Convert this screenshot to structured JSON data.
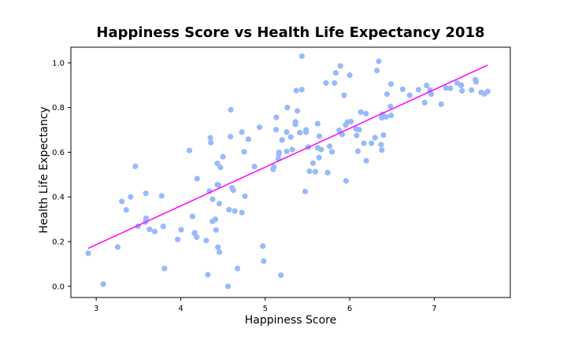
{
  "chart_data": {
    "type": "scatter",
    "title": "Happiness Score vs Health Life Expectancy 2018",
    "xlabel": "Happiness Score",
    "ylabel": "Health Life Expectancy",
    "xlim": [
      2.7,
      7.9
    ],
    "ylim": [
      -0.05,
      1.07
    ],
    "xticks": [
      3,
      4,
      5,
      6,
      7
    ],
    "yticks": [
      0.0,
      0.2,
      0.4,
      0.6,
      0.8,
      1.0
    ],
    "grid": false,
    "point_color": "#98bafb",
    "line_color": "#ff00ff",
    "regression_line": {
      "x": [
        2.905,
        7.632
      ],
      "y": [
        0.17,
        0.99
      ]
    },
    "points": [
      [
        2.905,
        0.148
      ],
      [
        3.083,
        0.01
      ],
      [
        3.254,
        0.176
      ],
      [
        3.303,
        0.38
      ],
      [
        3.355,
        0.342
      ],
      [
        3.408,
        0.4
      ],
      [
        3.462,
        0.537
      ],
      [
        3.495,
        0.269
      ],
      [
        3.582,
        0.288
      ],
      [
        3.59,
        0.305
      ],
      [
        3.587,
        0.416
      ],
      [
        3.631,
        0.255
      ],
      [
        3.692,
        0.245
      ],
      [
        3.774,
        0.405
      ],
      [
        3.793,
        0.268
      ],
      [
        3.808,
        0.08
      ],
      [
        3.964,
        0.21
      ],
      [
        4.005,
        0.253
      ],
      [
        4.103,
        0.608
      ],
      [
        4.139,
        0.313
      ],
      [
        4.161,
        0.237
      ],
      [
        4.166,
        0.24
      ],
      [
        4.19,
        0.22
      ],
      [
        4.194,
        0.482
      ],
      [
        4.301,
        0.205
      ],
      [
        4.321,
        0.052
      ],
      [
        4.34,
        0.426
      ],
      [
        4.35,
        0.665
      ],
      [
        4.356,
        0.643
      ],
      [
        4.377,
        0.39
      ],
      [
        4.376,
        0.291
      ],
      [
        4.41,
        0.3
      ],
      [
        4.417,
        0.252
      ],
      [
        4.433,
        0.455
      ],
      [
        4.434,
        0.55
      ],
      [
        4.44,
        0.175
      ],
      [
        4.447,
        0.453
      ],
      [
        4.456,
        0.37
      ],
      [
        4.457,
        0.153
      ],
      [
        4.471,
        0.532
      ],
      [
        4.5,
        0.58
      ],
      [
        4.559,
        0.0
      ],
      [
        4.571,
        0.343
      ],
      [
        4.592,
        0.79
      ],
      [
        4.588,
        0.67
      ],
      [
        4.607,
        0.441
      ],
      [
        4.623,
        0.43
      ],
      [
        4.639,
        0.337
      ],
      [
        4.671,
        0.08
      ],
      [
        4.724,
        0.69
      ],
      [
        4.724,
        0.33
      ],
      [
        4.75,
        0.602
      ],
      [
        4.76,
        0.403
      ],
      [
        4.8,
        0.658
      ],
      [
        4.872,
        0.536
      ],
      [
        4.933,
        0.712
      ],
      [
        4.972,
        0.18
      ],
      [
        4.982,
        0.113
      ],
      [
        5.093,
        0.524
      ],
      [
        5.103,
        0.534
      ],
      [
        5.131,
        0.756
      ],
      [
        5.129,
        0.701
      ],
      [
        5.161,
        0.591
      ],
      [
        5.155,
        0.57
      ],
      [
        5.164,
        0.6
      ],
      [
        5.185,
        0.05
      ],
      [
        5.199,
        0.655
      ],
      [
        5.253,
        0.604
      ],
      [
        5.254,
        0.69
      ],
      [
        5.262,
        0.8
      ],
      [
        5.302,
        0.668
      ],
      [
        5.32,
        0.612
      ],
      [
        5.358,
        0.736
      ],
      [
        5.358,
        0.725
      ],
      [
        5.366,
        0.876
      ],
      [
        5.38,
        0.785
      ],
      [
        5.41,
        0.688
      ],
      [
        5.433,
        0.88
      ],
      [
        5.434,
        1.03
      ],
      [
        5.472,
        0.424
      ],
      [
        5.483,
        0.69
      ],
      [
        5.483,
        0.7
      ],
      [
        5.51,
        0.623
      ],
      [
        5.524,
        0.515
      ],
      [
        5.566,
        0.551
      ],
      [
        5.593,
        0.513
      ],
      [
        5.62,
        0.728
      ],
      [
        5.62,
        0.62
      ],
      [
        5.636,
        0.576
      ],
      [
        5.64,
        0.672
      ],
      [
        5.662,
        0.612
      ],
      [
        5.719,
        0.91
      ],
      [
        5.739,
        0.509
      ],
      [
        5.762,
        0.627
      ],
      [
        5.79,
        0.602
      ],
      [
        5.82,
        0.91
      ],
      [
        5.835,
        0.955
      ],
      [
        5.875,
        0.698
      ],
      [
        5.89,
        0.986
      ],
      [
        5.91,
        0.68
      ],
      [
        5.933,
        0.855
      ],
      [
        5.951,
        0.722
      ],
      [
        5.956,
        0.472
      ],
      [
        5.973,
        0.735
      ],
      [
        6.0,
        0.945
      ],
      [
        6.014,
        0.737
      ],
      [
        6.072,
        0.705
      ],
      [
        6.082,
        0.675
      ],
      [
        6.096,
        0.605
      ],
      [
        6.112,
        0.701
      ],
      [
        6.131,
        0.78
      ],
      [
        6.167,
        0.64
      ],
      [
        6.192,
        0.773
      ],
      [
        6.195,
        0.562
      ],
      [
        6.257,
        0.64
      ],
      [
        6.3,
        0.665
      ],
      [
        6.322,
        0.966
      ],
      [
        6.343,
        1.007
      ],
      [
        6.371,
        0.634
      ],
      [
        6.379,
        0.61
      ],
      [
        6.379,
        0.754
      ],
      [
        6.388,
        0.77
      ],
      [
        6.399,
        0.677
      ],
      [
        6.43,
        0.758
      ],
      [
        6.441,
        0.86
      ],
      [
        6.482,
        0.805
      ],
      [
        6.488,
        0.905
      ],
      [
        6.489,
        0.765
      ],
      [
        6.627,
        0.882
      ],
      [
        6.71,
        0.855
      ],
      [
        6.814,
        0.88
      ],
      [
        6.886,
        0.822
      ],
      [
        6.91,
        0.899
      ],
      [
        6.949,
        0.878
      ],
      [
        6.965,
        0.86
      ],
      [
        7.082,
        0.815
      ],
      [
        7.139,
        0.887
      ],
      [
        7.19,
        0.886
      ],
      [
        7.272,
        0.91
      ],
      [
        7.314,
        0.9
      ],
      [
        7.321,
        0.9
      ],
      [
        7.328,
        0.875
      ],
      [
        7.441,
        0.878
      ],
      [
        7.487,
        0.925
      ],
      [
        7.495,
        0.915
      ],
      [
        7.555,
        0.868
      ],
      [
        7.594,
        0.861
      ],
      [
        7.632,
        0.872
      ]
    ]
  }
}
